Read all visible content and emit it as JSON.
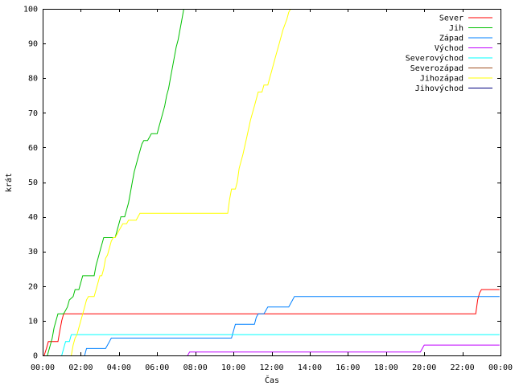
{
  "chart_data": {
    "type": "line",
    "xlabel": "Čas",
    "ylabel": "krát",
    "xlim": [
      0,
      24
    ],
    "ylim": [
      0,
      100
    ],
    "x_ticks": [
      {
        "value": 0,
        "label": "00:00"
      },
      {
        "value": 2,
        "label": "02:00"
      },
      {
        "value": 4,
        "label": "04:00"
      },
      {
        "value": 6,
        "label": "06:00"
      },
      {
        "value": 8,
        "label": "08:00"
      },
      {
        "value": 10,
        "label": "10:00"
      },
      {
        "value": 12,
        "label": "12:00"
      },
      {
        "value": 14,
        "label": "14:00"
      },
      {
        "value": 16,
        "label": "16:00"
      },
      {
        "value": 18,
        "label": "18:00"
      },
      {
        "value": 20,
        "label": "20:00"
      },
      {
        "value": 22,
        "label": "22:00"
      },
      {
        "value": 24,
        "label": "00:00"
      }
    ],
    "y_ticks": [
      0,
      10,
      20,
      30,
      40,
      50,
      60,
      70,
      80,
      90,
      100
    ],
    "grid": false,
    "legend_position": "top-right",
    "series": [
      {
        "name": "Sever",
        "color": "#ff0000",
        "points": [
          [
            0.08,
            0
          ],
          [
            0.2,
            2
          ],
          [
            0.3,
            4
          ],
          [
            0.8,
            4
          ],
          [
            0.9,
            7
          ],
          [
            1.0,
            10
          ],
          [
            1.1,
            12
          ],
          [
            22.7,
            12
          ],
          [
            22.8,
            16
          ],
          [
            22.9,
            18
          ],
          [
            23.0,
            19
          ],
          [
            23.95,
            19
          ]
        ]
      },
      {
        "name": "Jih",
        "color": "#00c000",
        "points": [
          [
            0.25,
            0
          ],
          [
            0.35,
            2
          ],
          [
            0.5,
            5
          ],
          [
            0.6,
            8
          ],
          [
            0.7,
            10
          ],
          [
            0.8,
            12
          ],
          [
            1.1,
            12
          ],
          [
            1.2,
            13
          ],
          [
            1.3,
            14
          ],
          [
            1.4,
            16
          ],
          [
            1.6,
            17
          ],
          [
            1.7,
            19
          ],
          [
            1.9,
            19
          ],
          [
            2.0,
            21
          ],
          [
            2.1,
            23
          ],
          [
            2.7,
            23
          ],
          [
            2.8,
            26
          ],
          [
            2.9,
            28
          ],
          [
            3.0,
            30
          ],
          [
            3.1,
            32
          ],
          [
            3.2,
            34
          ],
          [
            3.8,
            34
          ],
          [
            3.9,
            36
          ],
          [
            4.0,
            38
          ],
          [
            4.1,
            40
          ],
          [
            4.3,
            40
          ],
          [
            4.4,
            42
          ],
          [
            4.5,
            44
          ],
          [
            4.6,
            47
          ],
          [
            4.7,
            50
          ],
          [
            4.8,
            53
          ],
          [
            4.9,
            55
          ],
          [
            5.0,
            57
          ],
          [
            5.1,
            59
          ],
          [
            5.2,
            61
          ],
          [
            5.3,
            62
          ],
          [
            5.5,
            62
          ],
          [
            5.6,
            63
          ],
          [
            5.7,
            64
          ],
          [
            6.0,
            64
          ],
          [
            6.1,
            66
          ],
          [
            6.2,
            68
          ],
          [
            6.3,
            70
          ],
          [
            6.4,
            72
          ],
          [
            6.5,
            75
          ],
          [
            6.6,
            77
          ],
          [
            6.7,
            80
          ],
          [
            6.8,
            83
          ],
          [
            6.9,
            86
          ],
          [
            7.0,
            89
          ],
          [
            7.1,
            91
          ],
          [
            7.2,
            94
          ],
          [
            7.3,
            97
          ],
          [
            7.4,
            100
          ]
        ]
      },
      {
        "name": "Západ",
        "color": "#0080ff",
        "points": [
          [
            2.2,
            0
          ],
          [
            2.3,
            2
          ],
          [
            3.3,
            2
          ],
          [
            3.4,
            3
          ],
          [
            3.5,
            4
          ],
          [
            3.6,
            5
          ],
          [
            9.9,
            5
          ],
          [
            10.0,
            7
          ],
          [
            10.1,
            9
          ],
          [
            11.1,
            9
          ],
          [
            11.2,
            11
          ],
          [
            11.3,
            12
          ],
          [
            11.6,
            12
          ],
          [
            11.7,
            13
          ],
          [
            11.8,
            14
          ],
          [
            12.9,
            14
          ],
          [
            13.0,
            15
          ],
          [
            13.1,
            16
          ],
          [
            13.2,
            17
          ],
          [
            23.95,
            17
          ]
        ]
      },
      {
        "name": "Východ",
        "color": "#c000ff",
        "points": [
          [
            7.6,
            0
          ],
          [
            7.7,
            1
          ],
          [
            19.8,
            1
          ],
          [
            19.9,
            2
          ],
          [
            20.0,
            3
          ],
          [
            23.95,
            3
          ]
        ]
      },
      {
        "name": "Severovýchod",
        "color": "#00ffff",
        "points": [
          [
            1.0,
            0
          ],
          [
            1.1,
            2
          ],
          [
            1.2,
            4
          ],
          [
            1.4,
            4
          ],
          [
            1.5,
            6
          ],
          [
            23.95,
            6
          ]
        ]
      },
      {
        "name": "Severozápad",
        "color": "#a05020",
        "points": []
      },
      {
        "name": "Jihozápad",
        "color": "#ffff00",
        "points": [
          [
            1.5,
            0
          ],
          [
            1.6,
            3
          ],
          [
            1.7,
            5
          ],
          [
            1.8,
            6
          ],
          [
            1.9,
            8
          ],
          [
            2.0,
            10
          ],
          [
            2.1,
            12
          ],
          [
            2.2,
            14
          ],
          [
            2.3,
            16
          ],
          [
            2.4,
            17
          ],
          [
            2.7,
            17
          ],
          [
            2.8,
            19
          ],
          [
            2.9,
            21
          ],
          [
            3.0,
            23
          ],
          [
            3.1,
            23
          ],
          [
            3.2,
            25
          ],
          [
            3.3,
            28
          ],
          [
            3.4,
            29
          ],
          [
            3.5,
            31
          ],
          [
            3.6,
            33
          ],
          [
            3.7,
            34
          ],
          [
            3.8,
            34
          ],
          [
            3.9,
            35
          ],
          [
            4.0,
            36
          ],
          [
            4.1,
            37
          ],
          [
            4.2,
            38
          ],
          [
            4.4,
            38
          ],
          [
            4.5,
            39
          ],
          [
            4.9,
            39
          ],
          [
            5.0,
            40
          ],
          [
            5.1,
            41
          ],
          [
            9.7,
            41
          ],
          [
            9.8,
            45
          ],
          [
            9.9,
            48
          ],
          [
            10.1,
            48
          ],
          [
            10.2,
            50
          ],
          [
            10.3,
            54
          ],
          [
            10.5,
            58
          ],
          [
            10.7,
            63
          ],
          [
            10.9,
            68
          ],
          [
            11.1,
            72
          ],
          [
            11.3,
            76
          ],
          [
            11.5,
            76
          ],
          [
            11.6,
            78
          ],
          [
            11.8,
            78
          ],
          [
            11.9,
            80
          ],
          [
            12.0,
            82
          ],
          [
            12.2,
            86
          ],
          [
            12.4,
            90
          ],
          [
            12.6,
            94
          ],
          [
            12.8,
            97
          ],
          [
            12.9,
            99
          ],
          [
            13.0,
            100
          ]
        ]
      },
      {
        "name": "Jihovýchod",
        "color": "#000080",
        "points": []
      }
    ]
  }
}
